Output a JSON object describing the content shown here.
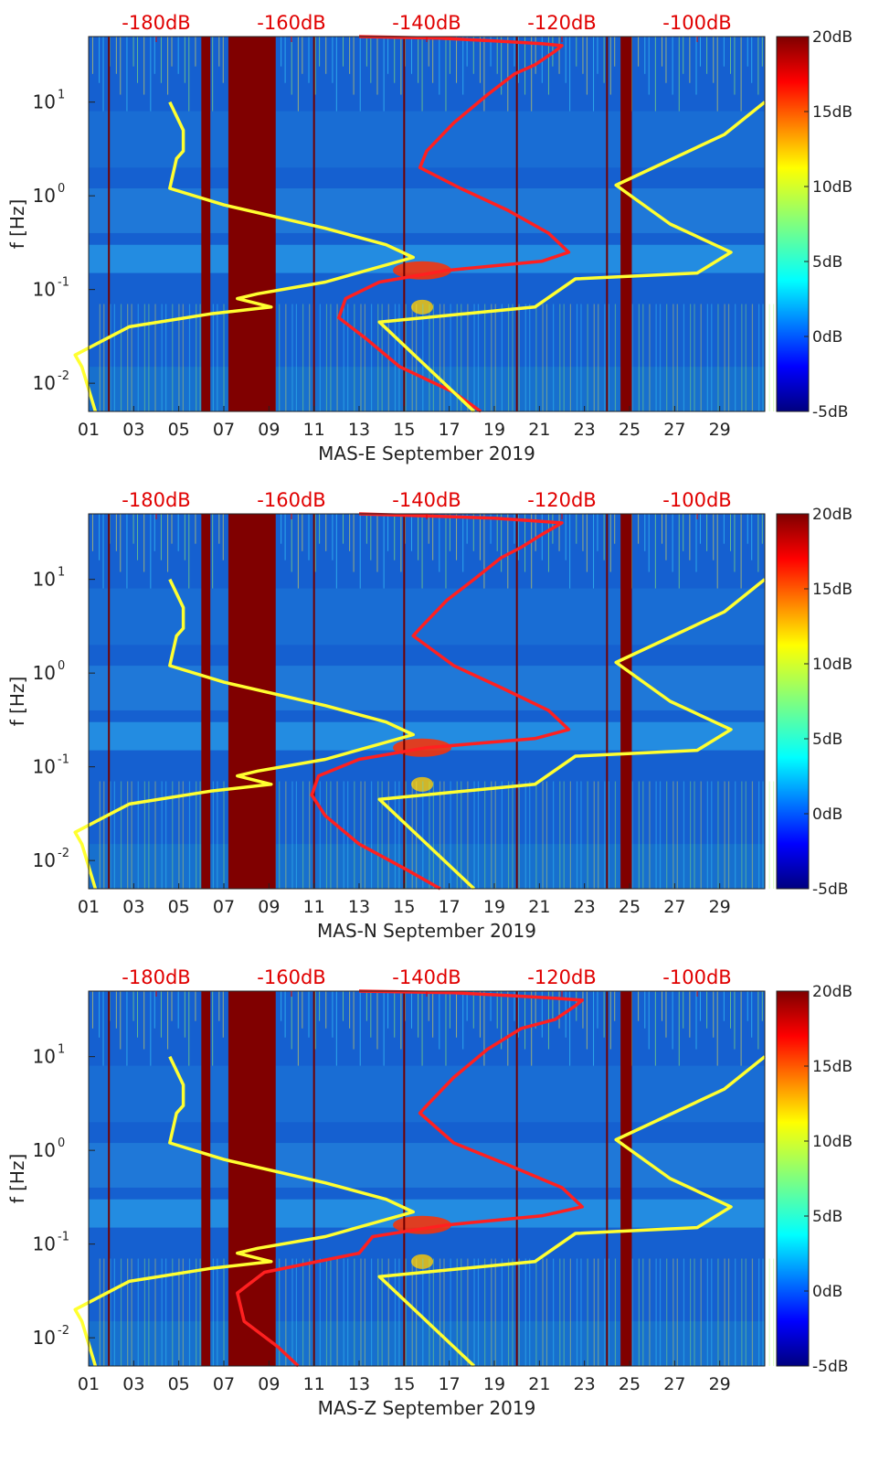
{
  "chart_data": [
    {
      "type": "heatmap",
      "station": "MAS-E",
      "xlabel": "MAS-E September 2019",
      "ylabel": "f [Hz]",
      "x_ticks": [
        "01",
        "03",
        "05",
        "07",
        "09",
        "11",
        "13",
        "15",
        "17",
        "19",
        "21",
        "23",
        "25",
        "27",
        "29"
      ],
      "x_range_days": [
        1,
        31
      ],
      "y_scale": "log",
      "y_range_hz": [
        0.005,
        50
      ],
      "y_ticks": [
        {
          "label": "10",
          "exp": "-2"
        },
        {
          "label": "10",
          "exp": "-1"
        },
        {
          "label": "10",
          "exp": "0"
        },
        {
          "label": "10",
          "exp": "1"
        }
      ],
      "top_axis_ticks": [
        "-180dB",
        "-160dB",
        "-140dB",
        "-120dB",
        "-100dB"
      ],
      "top_axis_db_range": [
        -190,
        -90
      ],
      "colorbar": {
        "ticks": [
          "-5dB",
          "0dB",
          "5dB",
          "10dB",
          "15dB",
          "20dB"
        ],
        "range_db": [
          -5,
          20
        ],
        "colormap": "jet"
      },
      "data_gaps_days": [
        [
          7.2,
          9.3
        ],
        [
          6.0,
          6.4
        ],
        [
          24.6,
          25.1
        ]
      ],
      "background_color": "#1560d0",
      "series": [
        {
          "color": "#ff2020",
          "points": [
            [
              -150,
              50
            ],
            [
              -138,
              48
            ],
            [
              -130,
              45
            ],
            [
              -123,
              42
            ],
            [
              -120,
              40
            ],
            [
              -121,
              35
            ],
            [
              -124,
              25
            ],
            [
              -127,
              20
            ],
            [
              -131,
              12
            ],
            [
              -136,
              6
            ],
            [
              -140,
              3
            ],
            [
              -141,
              2
            ],
            [
              -135,
              1.2
            ],
            [
              -128,
              0.7
            ],
            [
              -122,
              0.4
            ],
            [
              -119,
              0.25
            ],
            [
              -123,
              0.2
            ],
            [
              -137,
              0.16
            ],
            [
              -147,
              0.12
            ],
            [
              -152,
              0.08
            ],
            [
              -153,
              0.05
            ],
            [
              -149,
              0.03
            ],
            [
              -144,
              0.015
            ],
            [
              -136,
              0.008
            ],
            [
              -132,
              0.005
            ]
          ]
        },
        {
          "color": "#ffff30",
          "points": [
            [
              -178,
              10
            ],
            [
              -176,
              5
            ],
            [
              -176,
              3
            ],
            [
              -177,
              2.5
            ],
            [
              -178,
              1.2
            ],
            [
              -170,
              0.8
            ],
            [
              -155,
              0.45
            ],
            [
              -146,
              0.3
            ],
            [
              -142,
              0.22
            ],
            [
              -155,
              0.12
            ],
            [
              -165,
              0.09
            ],
            [
              -168,
              0.08
            ],
            [
              -163,
              0.065
            ],
            [
              -172,
              0.055
            ],
            [
              -184,
              0.04
            ],
            [
              -192,
              0.02
            ],
            [
              -191,
              0.015
            ],
            [
              -189,
              0.005
            ]
          ]
        },
        {
          "color": "#ffff30",
          "points": [
            [
              -90,
              10
            ],
            [
              -96,
              4.5
            ],
            [
              -112,
              1.3
            ],
            [
              -104,
              0.5
            ],
            [
              -95,
              0.25
            ],
            [
              -100,
              0.15
            ],
            [
              -118,
              0.13
            ],
            [
              -124,
              0.065
            ],
            [
              -147,
              0.045
            ],
            [
              -133,
              0.005
            ]
          ]
        }
      ]
    },
    {
      "type": "heatmap",
      "station": "MAS-N",
      "xlabel": "MAS-N September 2019",
      "ylabel": "f [Hz]",
      "x_ticks": [
        "01",
        "03",
        "05",
        "07",
        "09",
        "11",
        "13",
        "15",
        "17",
        "19",
        "21",
        "23",
        "25",
        "27",
        "29"
      ],
      "x_range_days": [
        1,
        31
      ],
      "y_scale": "log",
      "y_range_hz": [
        0.005,
        50
      ],
      "y_ticks": [
        {
          "label": "10",
          "exp": "-2"
        },
        {
          "label": "10",
          "exp": "-1"
        },
        {
          "label": "10",
          "exp": "0"
        },
        {
          "label": "10",
          "exp": "1"
        }
      ],
      "top_axis_ticks": [
        "-180dB",
        "-160dB",
        "-140dB",
        "-120dB",
        "-100dB"
      ],
      "top_axis_db_range": [
        -190,
        -90
      ],
      "colorbar": {
        "ticks": [
          "-5dB",
          "0dB",
          "5dB",
          "10dB",
          "15dB",
          "20dB"
        ],
        "range_db": [
          -5,
          20
        ],
        "colormap": "jet"
      },
      "data_gaps_days": [
        [
          7.2,
          9.3
        ],
        [
          6.0,
          6.4
        ],
        [
          24.6,
          25.1
        ]
      ],
      "background_color": "#1560d0",
      "series": [
        {
          "color": "#ff2020",
          "points": [
            [
              -150,
              50
            ],
            [
              -138,
              47
            ],
            [
              -130,
              45
            ],
            [
              -124,
              42
            ],
            [
              -120,
              40
            ],
            [
              -123,
              30
            ],
            [
              -126,
              22
            ],
            [
              -129,
              17
            ],
            [
              -133,
              10
            ],
            [
              -137,
              6
            ],
            [
              -141,
              3
            ],
            [
              -142,
              2.5
            ],
            [
              -136,
              1.2
            ],
            [
              -129,
              0.7
            ],
            [
              -122,
              0.4
            ],
            [
              -119,
              0.25
            ],
            [
              -124,
              0.2
            ],
            [
              -140,
              0.16
            ],
            [
              -150,
              0.12
            ],
            [
              -156,
              0.08
            ],
            [
              -157,
              0.05
            ],
            [
              -155,
              0.03
            ],
            [
              -150,
              0.015
            ],
            [
              -143,
              0.008
            ],
            [
              -138,
              0.005
            ]
          ]
        },
        {
          "color": "#ffff30",
          "points": [
            [
              -178,
              10
            ],
            [
              -176,
              5
            ],
            [
              -176,
              3
            ],
            [
              -177,
              2.5
            ],
            [
              -178,
              1.2
            ],
            [
              -170,
              0.8
            ],
            [
              -155,
              0.45
            ],
            [
              -146,
              0.3
            ],
            [
              -142,
              0.22
            ],
            [
              -155,
              0.12
            ],
            [
              -165,
              0.09
            ],
            [
              -168,
              0.08
            ],
            [
              -163,
              0.065
            ],
            [
              -172,
              0.055
            ],
            [
              -184,
              0.04
            ],
            [
              -192,
              0.02
            ],
            [
              -191,
              0.015
            ],
            [
              -189,
              0.005
            ]
          ]
        },
        {
          "color": "#ffff30",
          "points": [
            [
              -90,
              10
            ],
            [
              -96,
              4.5
            ],
            [
              -112,
              1.3
            ],
            [
              -104,
              0.5
            ],
            [
              -95,
              0.25
            ],
            [
              -100,
              0.15
            ],
            [
              -118,
              0.13
            ],
            [
              -124,
              0.065
            ],
            [
              -147,
              0.045
            ],
            [
              -133,
              0.005
            ]
          ]
        }
      ]
    },
    {
      "type": "heatmap",
      "station": "MAS-Z",
      "xlabel": "MAS-Z September 2019",
      "ylabel": "f [Hz]",
      "x_ticks": [
        "01",
        "03",
        "05",
        "07",
        "09",
        "11",
        "13",
        "15",
        "17",
        "19",
        "21",
        "23",
        "25",
        "27",
        "29"
      ],
      "x_range_days": [
        1,
        31
      ],
      "y_scale": "log",
      "y_range_hz": [
        0.005,
        50
      ],
      "y_ticks": [
        {
          "label": "10",
          "exp": "-2"
        },
        {
          "label": "10",
          "exp": "-1"
        },
        {
          "label": "10",
          "exp": "0"
        },
        {
          "label": "10",
          "exp": "1"
        }
      ],
      "top_axis_ticks": [
        "-180dB",
        "-160dB",
        "-140dB",
        "-120dB",
        "-100dB"
      ],
      "top_axis_db_range": [
        -190,
        -90
      ],
      "colorbar": {
        "ticks": [
          "-5dB",
          "0dB",
          "5dB",
          "10dB",
          "15dB",
          "20dB"
        ],
        "range_db": [
          -5,
          20
        ],
        "colormap": "jet"
      },
      "data_gaps_days": [
        [
          7.2,
          9.3
        ],
        [
          6.0,
          6.4
        ],
        [
          24.6,
          25.1
        ]
      ],
      "background_color": "#1560d0",
      "series": [
        {
          "color": "#ff2020",
          "points": [
            [
              -150,
              50
            ],
            [
              -136,
              48
            ],
            [
              -128,
              45
            ],
            [
              -121,
              42
            ],
            [
              -117,
              40
            ],
            [
              -118,
              35
            ],
            [
              -121,
              25
            ],
            [
              -126,
              20
            ],
            [
              -131,
              12
            ],
            [
              -136,
              6
            ],
            [
              -140,
              3
            ],
            [
              -141,
              2.5
            ],
            [
              -136,
              1.2
            ],
            [
              -128,
              0.7
            ],
            [
              -120,
              0.4
            ],
            [
              -117,
              0.25
            ],
            [
              -123,
              0.2
            ],
            [
              -137,
              0.16
            ],
            [
              -148,
              0.12
            ],
            [
              -150,
              0.08
            ],
            [
              -164,
              0.05
            ],
            [
              -168,
              0.03
            ],
            [
              -167,
              0.015
            ],
            [
              -162,
              0.008
            ],
            [
              -159,
              0.005
            ]
          ]
        },
        {
          "color": "#ffff30",
          "points": [
            [
              -178,
              10
            ],
            [
              -176,
              5
            ],
            [
              -176,
              3
            ],
            [
              -177,
              2.5
            ],
            [
              -178,
              1.2
            ],
            [
              -170,
              0.8
            ],
            [
              -155,
              0.45
            ],
            [
              -146,
              0.3
            ],
            [
              -142,
              0.22
            ],
            [
              -155,
              0.12
            ],
            [
              -165,
              0.09
            ],
            [
              -168,
              0.08
            ],
            [
              -163,
              0.065
            ],
            [
              -172,
              0.055
            ],
            [
              -184,
              0.04
            ],
            [
              -192,
              0.02
            ],
            [
              -191,
              0.015
            ],
            [
              -189,
              0.005
            ]
          ]
        },
        {
          "color": "#ffff30",
          "points": [
            [
              -90,
              10
            ],
            [
              -96,
              4.5
            ],
            [
              -112,
              1.3
            ],
            [
              -104,
              0.5
            ],
            [
              -95,
              0.25
            ],
            [
              -100,
              0.15
            ],
            [
              -118,
              0.13
            ],
            [
              -124,
              0.065
            ],
            [
              -147,
              0.045
            ],
            [
              -133,
              0.005
            ]
          ]
        }
      ]
    }
  ]
}
